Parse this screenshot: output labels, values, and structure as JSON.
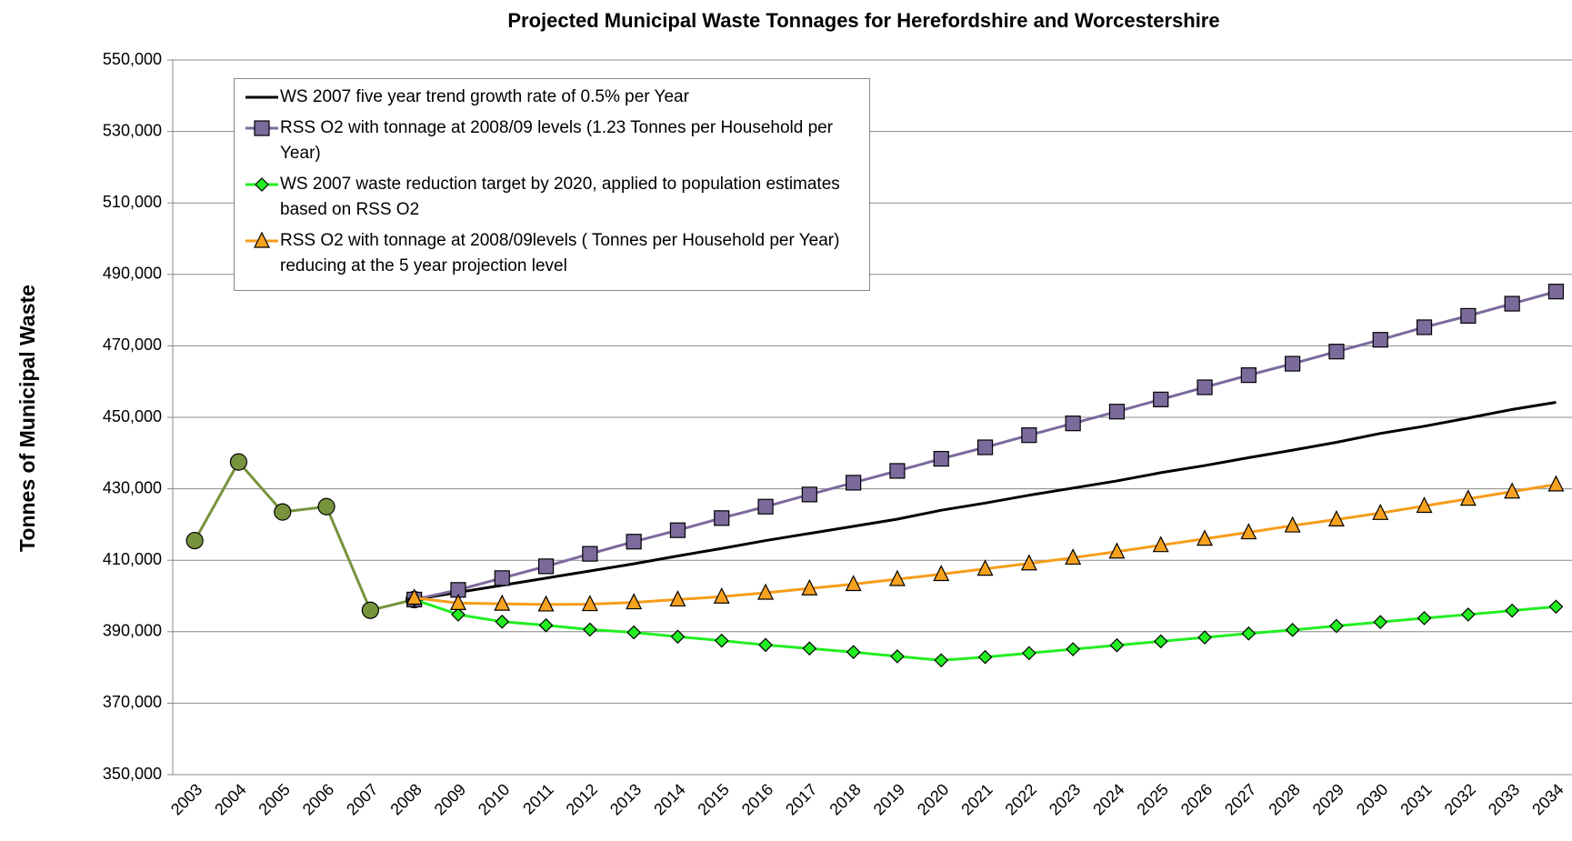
{
  "chart_data": {
    "type": "line",
    "title": "Projected Municipal Waste Tonnages for Herefordshire and Worcestershire",
    "y_label": "Tonnes of Municipal Waste",
    "categories": [
      "2003",
      "2004",
      "2005",
      "2006",
      "2007",
      "2008",
      "2009",
      "2010",
      "2011",
      "2012",
      "2013",
      "2014",
      "2015",
      "2016",
      "2017",
      "2018",
      "2019",
      "2020",
      "2021",
      "2022",
      "2023",
      "2024",
      "2025",
      "2026",
      "2027",
      "2028",
      "2029",
      "2030",
      "2031",
      "2032",
      "2033",
      "2034"
    ],
    "ylim": [
      350000,
      550000
    ],
    "yticks": [
      {
        "value": 350000,
        "label": "350,000"
      },
      {
        "value": 370000,
        "label": "370,000"
      },
      {
        "value": 390000,
        "label": "390,000"
      },
      {
        "value": 410000,
        "label": "410,000"
      },
      {
        "value": 430000,
        "label": "430,000"
      },
      {
        "value": 450000,
        "label": "450,000"
      },
      {
        "value": 470000,
        "label": "470,000"
      },
      {
        "value": 490000,
        "label": "490,000"
      },
      {
        "value": 510000,
        "label": "510,000"
      },
      {
        "value": 530000,
        "label": "530,000"
      },
      {
        "value": 550000,
        "label": "550,000"
      }
    ],
    "grid": true,
    "legend": "upper left",
    "series": [
      {
        "color": "#77933c",
        "marker_fill": "#77933c",
        "marker": "circle",
        "values": [
          415500,
          437500,
          423500,
          425000,
          396000,
          399000,
          null,
          null,
          null,
          null,
          null,
          null,
          null,
          null,
          null,
          null,
          null,
          null,
          null,
          null,
          null,
          null,
          null,
          null,
          null,
          null,
          null,
          null,
          null,
          null,
          null,
          null
        ]
      },
      {
        "name": "WS 2007 five year trend growth rate of 0.5% per Year",
        "color": "#000000",
        "marker": "none",
        "values": [
          null,
          null,
          null,
          null,
          null,
          399000,
          401000,
          403000,
          405000,
          407000,
          409000,
          411200,
          413300,
          415500,
          417500,
          419500,
          421500,
          424000,
          426000,
          428200,
          430200,
          432200,
          434500,
          436500,
          438700,
          440800,
          443000,
          445500,
          447500,
          449800,
          452200,
          454200
        ]
      },
      {
        "name": "RSS O2 with tonnage at 2008/09 levels (1.23 Tonnes per Household per Year)",
        "color": "#7b6a9c",
        "marker_fill": "#7b6a9c",
        "marker": "square",
        "values": [
          null,
          null,
          null,
          null,
          null,
          399000,
          401700,
          405000,
          408300,
          411800,
          415200,
          418400,
          421800,
          425000,
          428400,
          431700,
          435000,
          438400,
          441600,
          445000,
          448300,
          451600,
          455000,
          458400,
          461800,
          465000,
          468400,
          471700,
          475200,
          478400,
          481800,
          485200
        ]
      },
      {
        "name": "WS 2007 waste reduction target by 2020, applied to population estimates based on RSS O2",
        "color": "#22ee22",
        "marker_fill": "#22ee22",
        "marker": "diamond",
        "values": [
          null,
          null,
          null,
          null,
          null,
          399000,
          394800,
          392800,
          391800,
          390600,
          389800,
          388600,
          387500,
          386300,
          385300,
          384300,
          383100,
          382000,
          382900,
          384000,
          385100,
          386200,
          387300,
          388400,
          389500,
          390500,
          391600,
          392700,
          393800,
          394800,
          395900,
          397000
        ]
      },
      {
        "name": "RSS O2 with tonnage at 2008/09levels ( Tonnes per Household per Year) reducing at the 5 year projection level",
        "color": "#f79c1a",
        "marker_fill": "#f7a21e",
        "marker": "triangle",
        "values": [
          null,
          null,
          null,
          null,
          null,
          399500,
          398000,
          397800,
          397600,
          397700,
          398200,
          399000,
          399800,
          400900,
          402100,
          403300,
          404700,
          406100,
          407600,
          409100,
          410700,
          412400,
          414200,
          416000,
          417800,
          419700,
          421400,
          423200,
          425200,
          427200,
          429200,
          431200
        ]
      }
    ]
  }
}
